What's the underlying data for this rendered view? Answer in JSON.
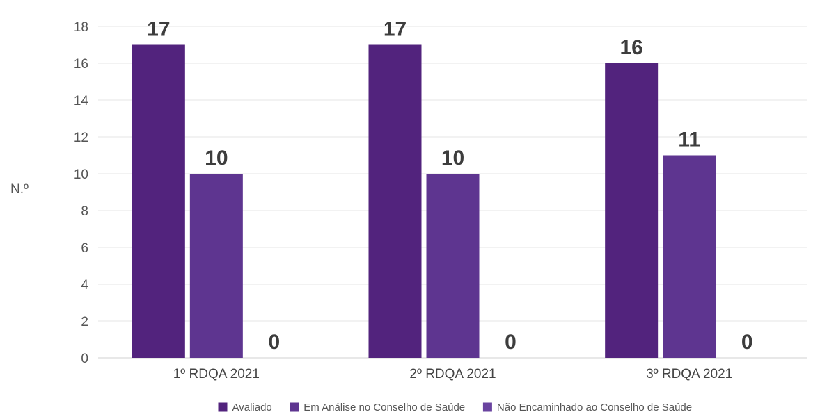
{
  "chart_data": {
    "type": "bar",
    "title": "",
    "xlabel": "",
    "ylabel": "N.º",
    "categories": [
      "1º RDQA 2021",
      "2º RDQA 2021",
      "3º RDQA 2021"
    ],
    "series": [
      {
        "name": "Avaliado",
        "values": [
          17,
          17,
          16
        ],
        "color": "#52237d"
      },
      {
        "name": "Em Análise no Conselho de Saúde",
        "values": [
          10,
          10,
          11
        ],
        "color": "#5e3590"
      },
      {
        "name": "Não Encaminhado ao Conselho de Saúde",
        "values": [
          0,
          0,
          0
        ],
        "color": "#6a44a0"
      }
    ],
    "ylim": [
      0,
      18
    ],
    "yticks": [
      0,
      2,
      4,
      6,
      8,
      10,
      12,
      14,
      16,
      18
    ],
    "grid": true,
    "data_labels": true,
    "legend_position": "bottom"
  }
}
